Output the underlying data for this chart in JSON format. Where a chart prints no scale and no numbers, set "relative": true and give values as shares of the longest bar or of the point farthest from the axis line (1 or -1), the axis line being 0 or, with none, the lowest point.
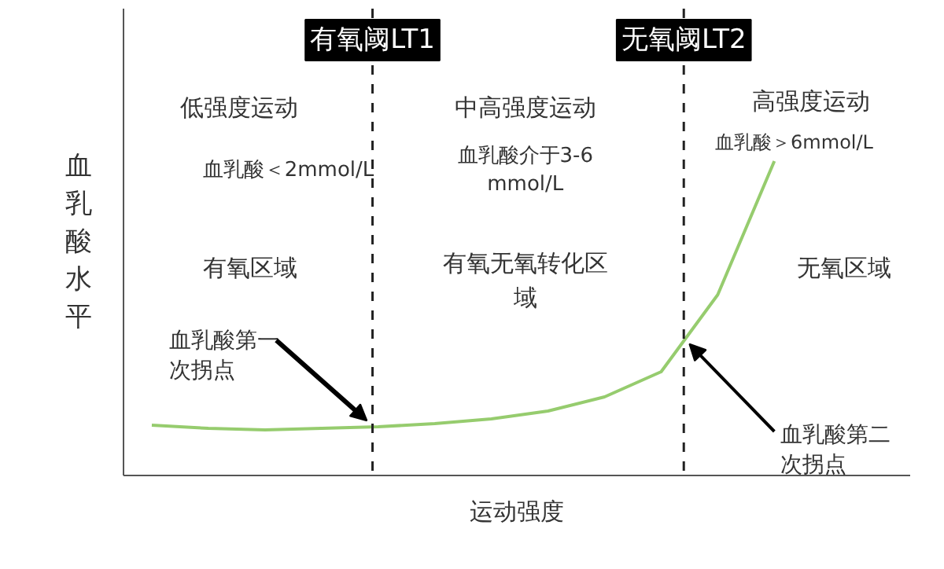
{
  "chart_data": {
    "type": "line",
    "relative": true,
    "xlabel": "运动强度",
    "ylabel": "血乳酸水平",
    "categories": [
      null,
      null,
      null,
      null,
      null,
      null,
      null,
      null,
      null,
      null,
      null,
      null
    ],
    "series": [
      {
        "color": "#96cc6e",
        "values": [
          0.16,
          0.15,
          0.145,
          0.15,
          0.155,
          0.165,
          0.18,
          0.205,
          0.25,
          0.33,
          0.575,
          1.0
        ]
      }
    ],
    "annotations": [
      "低强度运动",
      "中高强度运动",
      "高强度运动",
      "血乳酸＜2mmol/L",
      "血乳酸介于3-6mmol/L",
      "血乳酸＞6mmol/L",
      "有氧区域",
      "有氧无氧转化区域",
      "无氧区域",
      "血乳酸第一次拐点",
      "血乳酸第二次拐点",
      "有氧阈LT1",
      "无氧阈LT2"
    ],
    "tick_labels": false,
    "marker": "none",
    "line_style": "solid"
  }
}
